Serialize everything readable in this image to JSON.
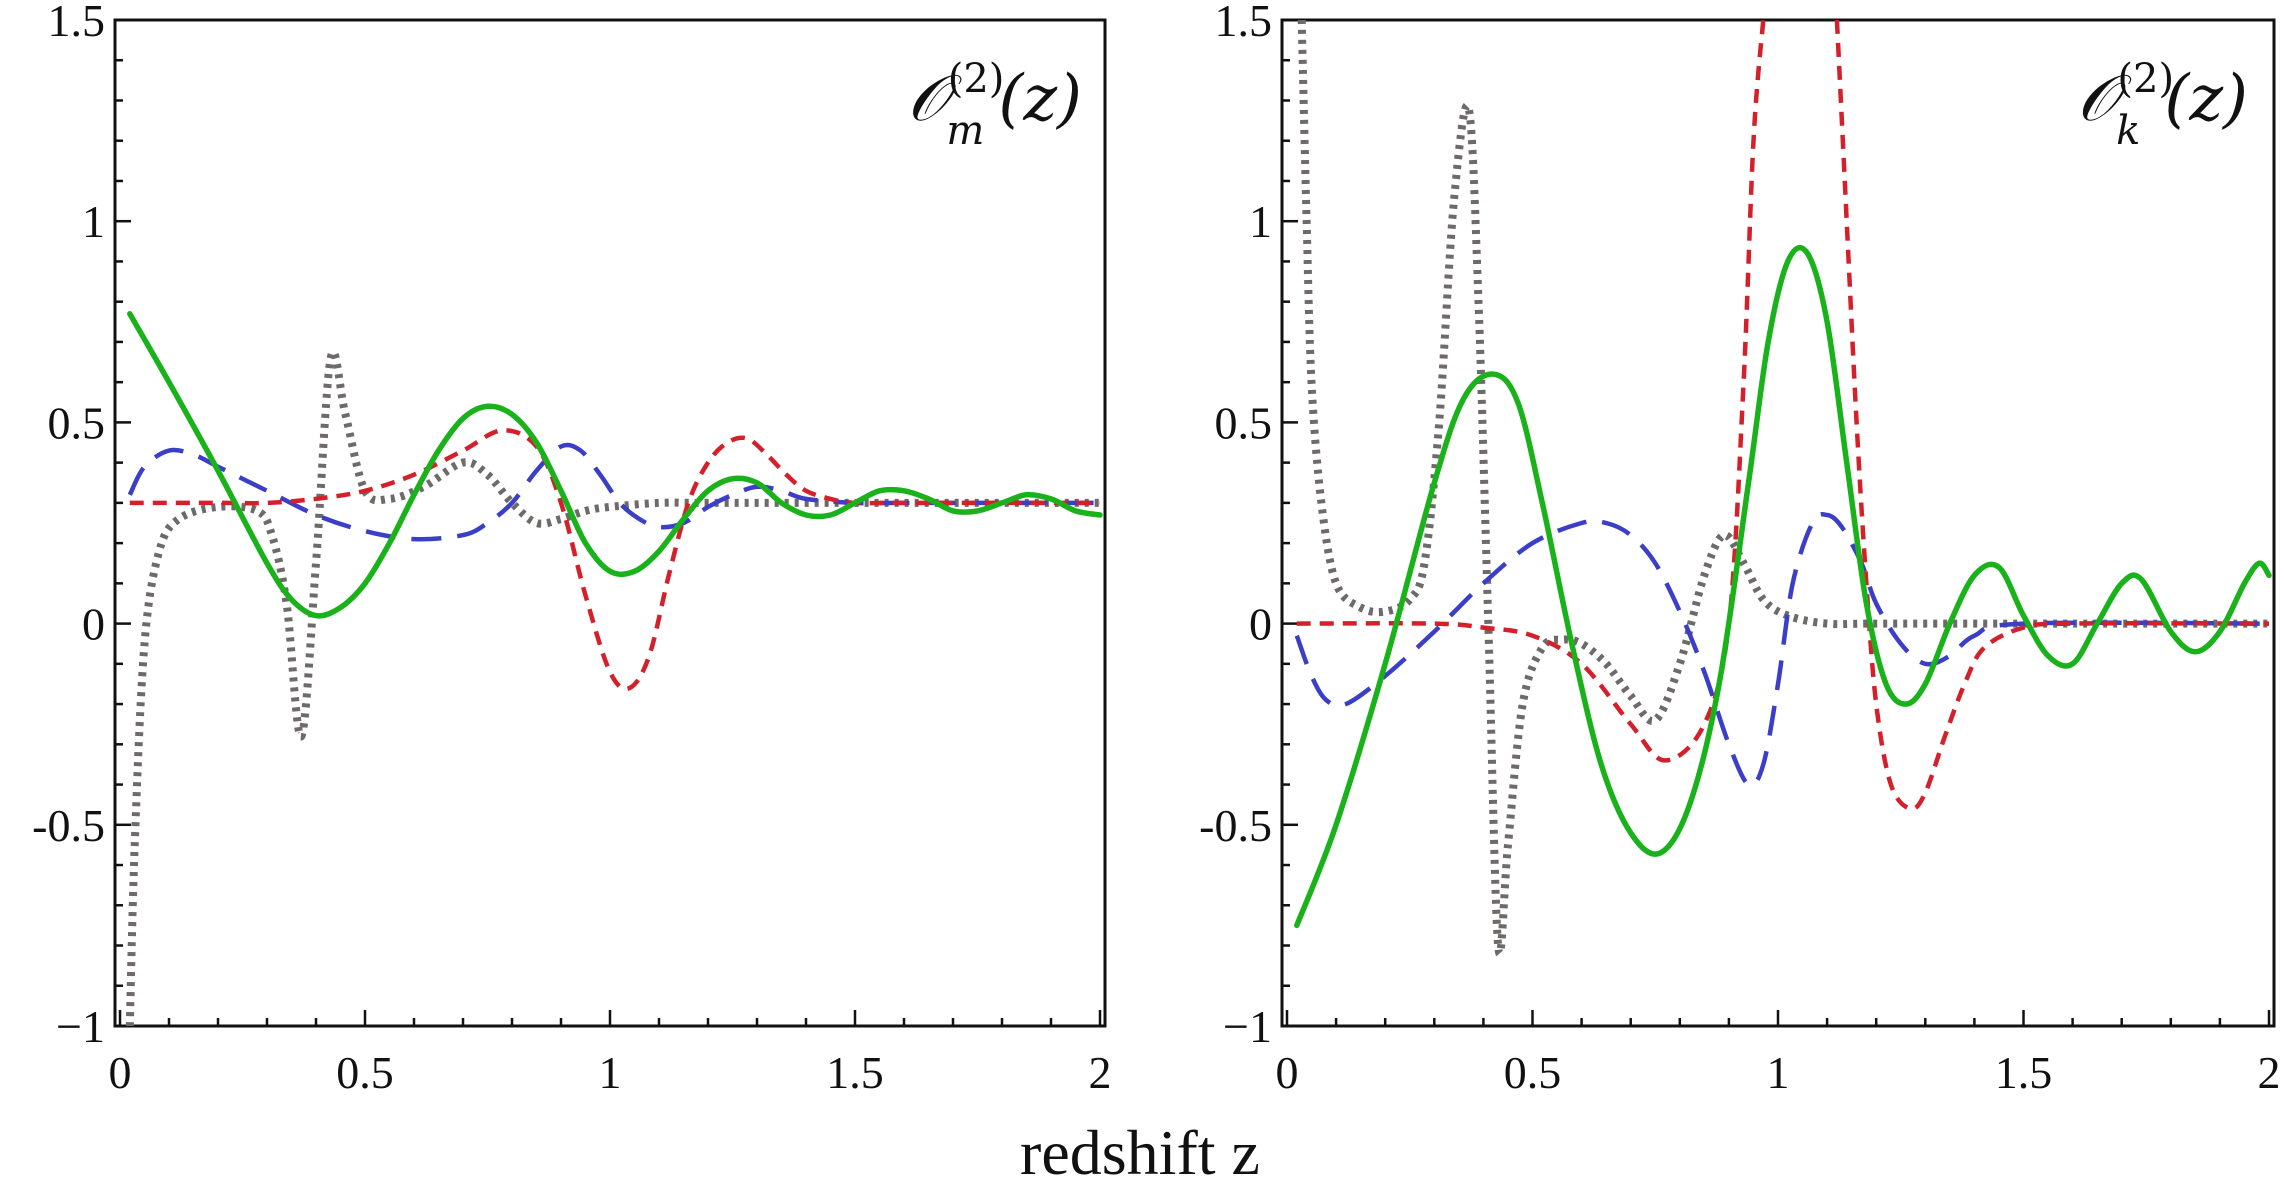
{
  "chart_data": [
    {
      "type": "line",
      "title": "𝒪_m^(2)(z)",
      "title_parts": {
        "base": "𝒪",
        "sup": "(2)",
        "sub": "m",
        "arg": "(z)"
      },
      "xlabel": "redshift z",
      "ylabel": "",
      "xlim": [
        0,
        2
      ],
      "ylim": [
        -1,
        1.5
      ],
      "xticks": [
        0,
        0.5,
        1,
        1.5,
        2
      ],
      "xtick_labels": [
        "0",
        "0.5",
        "1",
        "1.5",
        "2"
      ],
      "yticks": [
        -1,
        -0.5,
        0,
        0.5,
        1,
        1.5
      ],
      "ytick_labels": [
        "−1",
        "-0.5",
        "0",
        "0.5",
        "1",
        "1.5"
      ],
      "grid": false,
      "series": [
        {
          "name": "gray-dotted",
          "color": "#6e6a6a",
          "style": "dotted",
          "x": [
            0.02,
            0.03,
            0.05,
            0.08,
            0.12,
            0.2,
            0.28,
            0.31,
            0.34,
            0.37,
            0.4,
            0.43,
            0.46,
            0.5,
            0.55,
            0.62,
            0.7,
            0.75,
            0.8,
            0.85,
            0.9,
            0.95,
            1.0,
            1.1,
            1.2,
            1.5,
            2.0
          ],
          "y": [
            -1.0,
            -0.55,
            -0.05,
            0.18,
            0.26,
            0.29,
            0.28,
            0.22,
            0.05,
            -0.28,
            0.15,
            0.66,
            0.52,
            0.33,
            0.31,
            0.34,
            0.4,
            0.37,
            0.3,
            0.25,
            0.26,
            0.28,
            0.29,
            0.3,
            0.3,
            0.3,
            0.3
          ]
        },
        {
          "name": "blue-dashed",
          "color": "#3b3fc8",
          "style": "long-dash",
          "x": [
            0.02,
            0.05,
            0.1,
            0.15,
            0.2,
            0.3,
            0.4,
            0.5,
            0.6,
            0.7,
            0.75,
            0.8,
            0.85,
            0.9,
            0.94,
            0.98,
            1.02,
            1.06,
            1.1,
            1.15,
            1.2,
            1.25,
            1.3,
            1.35,
            1.4,
            1.5,
            1.6,
            2.0
          ],
          "y": [
            0.32,
            0.39,
            0.43,
            0.42,
            0.39,
            0.33,
            0.27,
            0.23,
            0.21,
            0.22,
            0.25,
            0.3,
            0.38,
            0.44,
            0.43,
            0.37,
            0.3,
            0.26,
            0.24,
            0.25,
            0.29,
            0.32,
            0.34,
            0.33,
            0.31,
            0.3,
            0.3,
            0.3
          ]
        },
        {
          "name": "red-dashed",
          "color": "#d4202a",
          "style": "short-dash",
          "x": [
            0.02,
            0.2,
            0.3,
            0.4,
            0.5,
            0.6,
            0.7,
            0.78,
            0.85,
            0.9,
            0.95,
            1.0,
            1.04,
            1.08,
            1.12,
            1.16,
            1.2,
            1.24,
            1.28,
            1.32,
            1.36,
            1.4,
            1.45,
            1.5,
            1.6,
            2.0
          ],
          "y": [
            0.3,
            0.3,
            0.3,
            0.31,
            0.33,
            0.37,
            0.43,
            0.48,
            0.44,
            0.3,
            0.07,
            -0.12,
            -0.16,
            -0.08,
            0.12,
            0.3,
            0.4,
            0.45,
            0.46,
            0.42,
            0.37,
            0.33,
            0.31,
            0.3,
            0.3,
            0.3
          ]
        },
        {
          "name": "green-solid",
          "color": "#1ab21a",
          "style": "solid",
          "x": [
            0.02,
            0.1,
            0.2,
            0.3,
            0.35,
            0.4,
            0.45,
            0.5,
            0.55,
            0.6,
            0.65,
            0.7,
            0.75,
            0.8,
            0.85,
            0.9,
            0.95,
            1.0,
            1.05,
            1.1,
            1.15,
            1.2,
            1.25,
            1.3,
            1.35,
            1.4,
            1.45,
            1.5,
            1.55,
            1.6,
            1.65,
            1.7,
            1.75,
            1.8,
            1.85,
            1.9,
            1.95,
            2.0
          ],
          "y": [
            0.77,
            0.6,
            0.38,
            0.15,
            0.06,
            0.02,
            0.04,
            0.1,
            0.2,
            0.32,
            0.43,
            0.51,
            0.54,
            0.52,
            0.45,
            0.33,
            0.2,
            0.13,
            0.13,
            0.18,
            0.26,
            0.33,
            0.36,
            0.35,
            0.3,
            0.27,
            0.27,
            0.3,
            0.33,
            0.33,
            0.31,
            0.28,
            0.28,
            0.3,
            0.32,
            0.31,
            0.28,
            0.27
          ]
        }
      ]
    },
    {
      "type": "line",
      "title": "𝒪_k^(2)(z)",
      "title_parts": {
        "base": "𝒪",
        "sup": "(2)",
        "sub": "k",
        "arg": "(z)"
      },
      "xlabel": "redshift z",
      "ylabel": "",
      "xlim": [
        0,
        2
      ],
      "ylim": [
        -1,
        1.5
      ],
      "xticks": [
        0,
        0.5,
        1,
        1.5,
        2
      ],
      "xtick_labels": [
        "0",
        "0.5",
        "1",
        "1.5",
        "2"
      ],
      "yticks": [
        -1,
        -0.5,
        0,
        0.5,
        1,
        1.5
      ],
      "ytick_labels": [
        "−1",
        "-0.5",
        "0",
        "0.5",
        "1",
        "1.5"
      ],
      "grid": false,
      "series": [
        {
          "name": "gray-dotted",
          "color": "#6e6a6a",
          "style": "dotted",
          "x": [
            0.03,
            0.04,
            0.05,
            0.07,
            0.1,
            0.15,
            0.2,
            0.25,
            0.28,
            0.31,
            0.34,
            0.37,
            0.39,
            0.41,
            0.43,
            0.45,
            0.48,
            0.52,
            0.56,
            0.6,
            0.65,
            0.7,
            0.75,
            0.8,
            0.85,
            0.89,
            0.93,
            0.97,
            1.02,
            1.1,
            1.2,
            1.5,
            2.0
          ],
          "y": [
            1.5,
            1.0,
            0.6,
            0.3,
            0.1,
            0.04,
            0.03,
            0.06,
            0.15,
            0.5,
            1.05,
            1.28,
            0.8,
            0.0,
            -0.8,
            -0.55,
            -0.2,
            -0.06,
            -0.04,
            -0.05,
            -0.1,
            -0.18,
            -0.24,
            -0.1,
            0.12,
            0.22,
            0.15,
            0.06,
            0.02,
            0.0,
            0.0,
            0.0,
            0.0
          ]
        },
        {
          "name": "blue-dashed",
          "color": "#3b3fc8",
          "style": "long-dash",
          "x": [
            0.02,
            0.05,
            0.08,
            0.12,
            0.2,
            0.3,
            0.4,
            0.5,
            0.6,
            0.65,
            0.7,
            0.75,
            0.8,
            0.85,
            0.9,
            0.94,
            0.97,
            1.0,
            1.03,
            1.07,
            1.1,
            1.13,
            1.17,
            1.2,
            1.25,
            1.3,
            1.35,
            1.4,
            1.5,
            2.0
          ],
          "y": [
            -0.03,
            -0.13,
            -0.19,
            -0.2,
            -0.13,
            -0.02,
            0.1,
            0.2,
            0.25,
            0.25,
            0.22,
            0.15,
            0.03,
            -0.12,
            -0.3,
            -0.4,
            -0.35,
            -0.15,
            0.1,
            0.25,
            0.27,
            0.24,
            0.15,
            0.05,
            -0.05,
            -0.1,
            -0.08,
            -0.03,
            0.0,
            0.0
          ]
        },
        {
          "name": "red-dashed",
          "color": "#d4202a",
          "style": "short-dash",
          "x": [
            0.02,
            0.3,
            0.4,
            0.5,
            0.6,
            0.7,
            0.77,
            0.85,
            0.9,
            0.93,
            0.95,
            0.97
          ],
          "y": [
            0.0,
            0.0,
            -0.01,
            -0.03,
            -0.1,
            -0.25,
            -0.34,
            -0.25,
            0.0,
            0.6,
            1.2,
            1.5
          ],
          "x2": [
            1.12,
            1.14,
            1.16,
            1.18,
            1.2,
            1.23,
            1.27,
            1.3,
            1.34,
            1.38,
            1.42,
            1.5,
            1.6,
            2.0
          ],
          "y2": [
            1.5,
            1.0,
            0.5,
            0.1,
            -0.2,
            -0.4,
            -0.46,
            -0.42,
            -0.28,
            -0.15,
            -0.06,
            -0.01,
            0.0,
            0.0
          ]
        },
        {
          "name": "green-solid",
          "color": "#1ab21a",
          "style": "solid",
          "x": [
            0.02,
            0.1,
            0.2,
            0.3,
            0.36,
            0.42,
            0.47,
            0.52,
            0.58,
            0.64,
            0.7,
            0.76,
            0.82,
            0.88,
            0.94,
            0.98,
            1.02,
            1.06,
            1.1,
            1.14,
            1.18,
            1.22,
            1.26,
            1.3,
            1.35,
            1.4,
            1.45,
            1.5,
            1.55,
            1.6,
            1.65,
            1.7,
            1.74,
            1.8,
            1.85,
            1.9,
            1.95,
            1.98,
            2.0
          ],
          "y": [
            -0.75,
            -0.5,
            -0.1,
            0.35,
            0.56,
            0.62,
            0.55,
            0.3,
            -0.05,
            -0.35,
            -0.52,
            -0.57,
            -0.45,
            -0.15,
            0.35,
            0.7,
            0.9,
            0.92,
            0.75,
            0.4,
            0.05,
            -0.15,
            -0.2,
            -0.15,
            0.0,
            0.12,
            0.14,
            0.02,
            -0.08,
            -0.1,
            0.0,
            0.1,
            0.11,
            -0.02,
            -0.07,
            -0.02,
            0.1,
            0.15,
            0.12
          ]
        }
      ]
    }
  ]
}
